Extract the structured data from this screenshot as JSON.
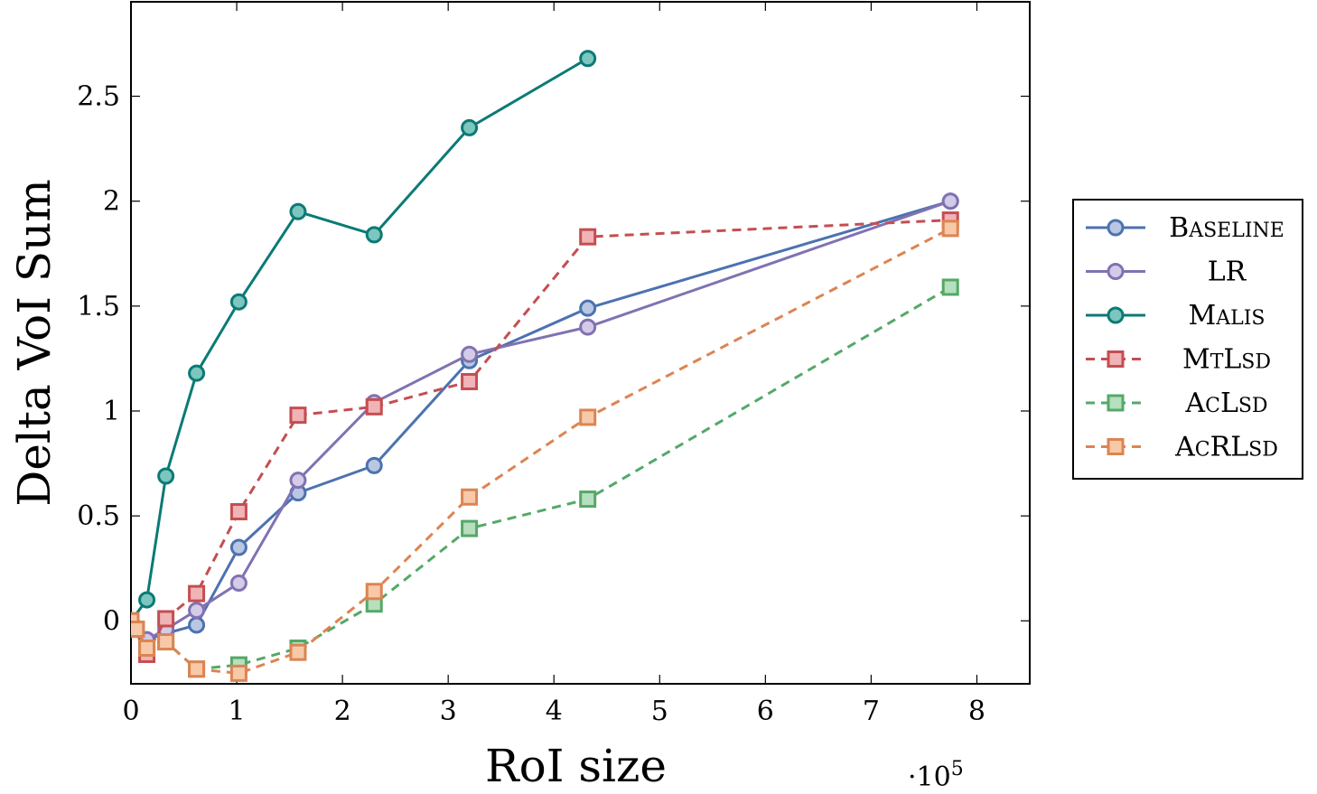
{
  "chart_data": {
    "type": "line",
    "xlabel": "RoI size",
    "ylabel": "Delta VoI Sum",
    "x_multiplier": {
      "base": "·10",
      "exp": "5"
    },
    "xlim": [
      0,
      8.5
    ],
    "ylim": [
      -0.3,
      2.95
    ],
    "xticks": [
      0,
      1,
      2,
      3,
      4,
      5,
      6,
      7,
      8
    ],
    "xtick_labels": [
      "0",
      "1",
      "2",
      "3",
      "4",
      "5",
      "6",
      "7",
      "8"
    ],
    "yticks": [
      0,
      0.5,
      1,
      1.5,
      2,
      2.5
    ],
    "ytick_labels": [
      "0",
      "0.5",
      "1",
      "1.5",
      "2",
      "2.5"
    ],
    "grid": false,
    "legend_position": "right",
    "series": [
      {
        "name": "Baseline",
        "name_parts": [
          {
            "t": "B",
            "sc": false
          },
          {
            "t": "ASELINE",
            "sc": true
          }
        ],
        "color": "#4c72b0",
        "fill": "#b9c7e3",
        "marker": "circle",
        "dash": "solid",
        "x": [
          0.0,
          0.15,
          0.33,
          0.62,
          1.02,
          1.58,
          2.3,
          3.2,
          4.32,
          7.75
        ],
        "y": [
          0.0,
          -0.09,
          -0.06,
          -0.02,
          0.35,
          0.61,
          0.74,
          1.24,
          1.49,
          2.0
        ]
      },
      {
        "name": "LR",
        "name_parts": [
          {
            "t": "LR",
            "sc": false
          }
        ],
        "color": "#8172b2",
        "fill": "#d3cbe8",
        "marker": "circle",
        "dash": "solid",
        "x": [
          0.0,
          0.15,
          0.33,
          0.62,
          1.02,
          1.58,
          2.3,
          3.2,
          4.32,
          7.75
        ],
        "y": [
          0.0,
          -0.09,
          -0.04,
          0.05,
          0.18,
          0.67,
          1.04,
          1.27,
          1.4,
          2.0
        ]
      },
      {
        "name": "Malis",
        "name_parts": [
          {
            "t": "M",
            "sc": false
          },
          {
            "t": "ALIS",
            "sc": true
          }
        ],
        "color": "#0b7a75",
        "fill": "#7cc6bf",
        "marker": "circle",
        "dash": "solid",
        "x": [
          0.0,
          0.15,
          0.33,
          0.62,
          1.02,
          1.58,
          2.3,
          3.2,
          4.32
        ],
        "y": [
          0.0,
          0.1,
          0.69,
          1.18,
          1.52,
          1.95,
          1.84,
          2.35,
          2.68
        ]
      },
      {
        "name": "MtLsd",
        "name_parts": [
          {
            "t": "M",
            "sc": false
          },
          {
            "t": "T",
            "sc": true
          },
          {
            "t": "L",
            "sc": false
          },
          {
            "t": "SD",
            "sc": true
          }
        ],
        "color": "#c44e52",
        "fill": "#f0b3b6",
        "marker": "square",
        "dash": "dashed",
        "x": [
          0.0,
          0.15,
          0.33,
          0.62,
          1.02,
          1.58,
          2.3,
          3.2,
          4.32,
          7.75
        ],
        "y": [
          0.0,
          -0.16,
          0.01,
          0.13,
          0.52,
          0.98,
          1.02,
          1.14,
          1.83,
          1.91
        ]
      },
      {
        "name": "AcLsd",
        "name_parts": [
          {
            "t": "A",
            "sc": false
          },
          {
            "t": "C",
            "sc": true
          },
          {
            "t": "L",
            "sc": false
          },
          {
            "t": "SD",
            "sc": true
          }
        ],
        "color": "#55a868",
        "fill": "#b6dfbd",
        "marker": "square",
        "dash": "dashed",
        "x": [
          0.0,
          0.05,
          0.15,
          0.33,
          0.62,
          1.02,
          1.58,
          2.3,
          3.2,
          4.32,
          7.75
        ],
        "y": [
          0.0,
          -0.04,
          -0.13,
          -0.1,
          -0.23,
          -0.21,
          -0.13,
          0.08,
          0.44,
          0.58,
          1.59
        ]
      },
      {
        "name": "AcRLsd",
        "name_parts": [
          {
            "t": "A",
            "sc": false
          },
          {
            "t": "C",
            "sc": true
          },
          {
            "t": "RL",
            "sc": false
          },
          {
            "t": "SD",
            "sc": true
          }
        ],
        "color": "#dd8452",
        "fill": "#f7c9a9",
        "marker": "square",
        "dash": "dashed",
        "x": [
          0.0,
          0.05,
          0.15,
          0.33,
          0.62,
          1.02,
          1.58,
          2.3,
          3.2,
          4.32,
          7.75
        ],
        "y": [
          0.0,
          -0.04,
          -0.13,
          -0.1,
          -0.23,
          -0.25,
          -0.15,
          0.14,
          0.59,
          0.97,
          1.87
        ]
      }
    ]
  }
}
